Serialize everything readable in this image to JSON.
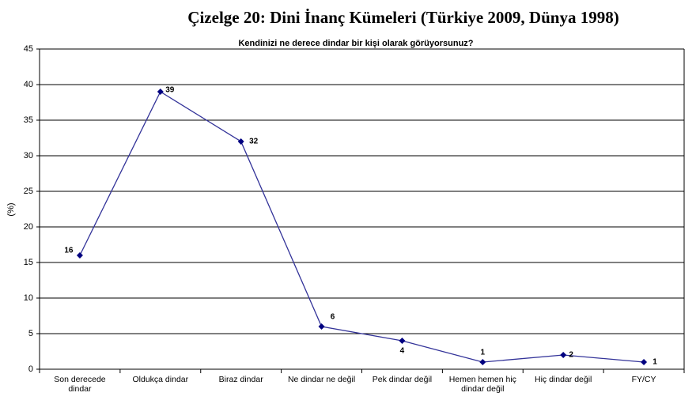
{
  "chart_data": {
    "type": "line",
    "title": "Çizelge 20: Dini İnanç Kümeleri (Türkiye 2009, Dünya 1998)",
    "subtitle": "Kendinizi ne derece dindar bir kişi olarak görüyorsunuz?",
    "y_label": "(%)",
    "categories": [
      "Son derecede dindar",
      "Oldukça dindar",
      "Biraz dindar",
      "Ne dindar ne değil",
      "Pek dindar değil",
      "Hemen hemen hiç dindar değil",
      "Hiç dindar değil",
      "FY/CY"
    ],
    "values": [
      16,
      39,
      32,
      6,
      4,
      1,
      2,
      1
    ],
    "color": "#333399",
    "ylim": [
      0,
      45
    ],
    "yticks": [
      0,
      5,
      10,
      15,
      20,
      25,
      30,
      35,
      40,
      45
    ],
    "grid": true
  }
}
